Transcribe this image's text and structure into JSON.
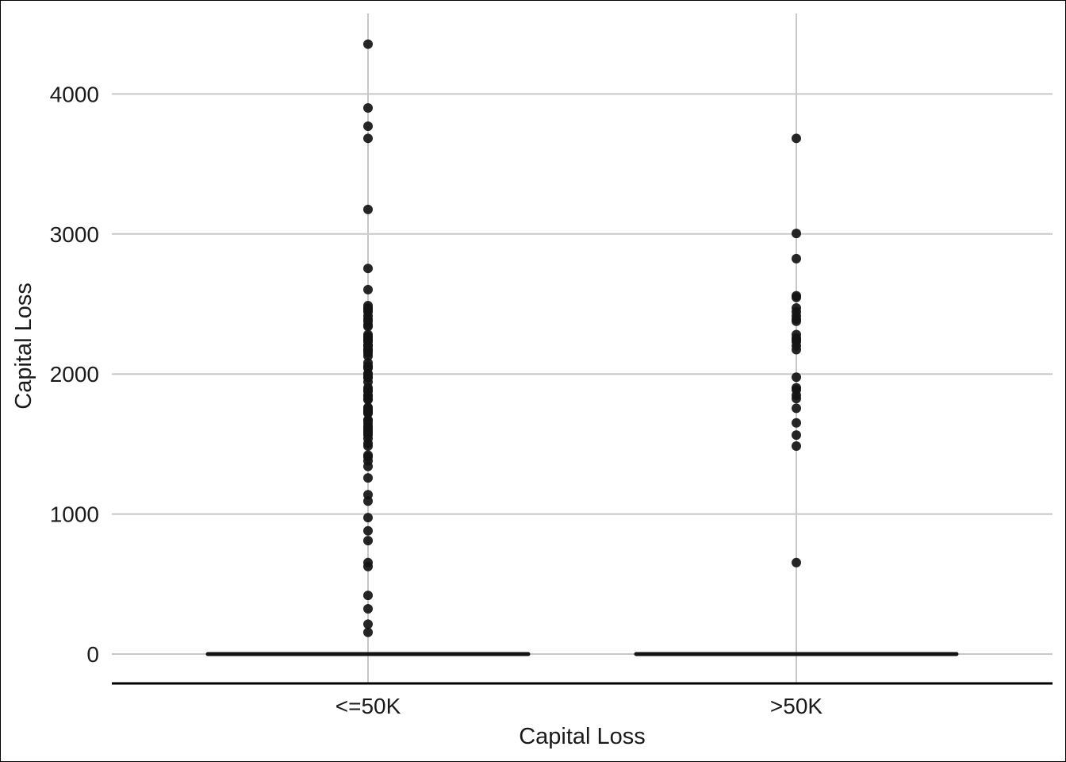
{
  "chart_data": {
    "type": "box",
    "title": "",
    "xlabel": "Capital Loss",
    "ylabel": "Capital Loss",
    "categories": [
      "<=50K",
      ">50K"
    ],
    "ylim": [
      -200,
      4400
    ],
    "yticks": [
      0,
      1000,
      2000,
      3000,
      4000
    ],
    "grid": true,
    "legend": "none",
    "colors": {
      "grid": "#c8c8c8",
      "point": "#141414",
      "box": "#141414",
      "axis": "#000000"
    },
    "boxes": [
      {
        "category": "<=50K",
        "min": 0,
        "q1": 0,
        "median": 0,
        "q3": 0,
        "max": 0
      },
      {
        "category": ">50K",
        "min": 0,
        "q1": 0,
        "median": 0,
        "q3": 0,
        "max": 0
      }
    ],
    "outliers": [
      {
        "category": "<=50K",
        "values": [
          155,
          213,
          323,
          419,
          625,
          653,
          810,
          880,
          974,
          1092,
          1138,
          1258,
          1340,
          1380,
          1408,
          1421,
          1485,
          1504,
          1539,
          1564,
          1579,
          1590,
          1602,
          1617,
          1628,
          1648,
          1669,
          1672,
          1719,
          1726,
          1735,
          1740,
          1741,
          1755,
          1762,
          1816,
          1825,
          1844,
          1848,
          1876,
          1887,
          1902,
          1944,
          1974,
          1977,
          1980,
          2001,
          2002,
          2042,
          2051,
          2057,
          2080,
          2129,
          2149,
          2163,
          2174,
          2179,
          2201,
          2205,
          2206,
          2231,
          2238,
          2246,
          2258,
          2267,
          2282,
          2339,
          2352,
          2377,
          2392,
          2415,
          2444,
          2457,
          2467,
          2472,
          2489,
          2603,
          2754,
          3175,
          3683,
          3770,
          3900,
          4356
        ]
      },
      {
        "category": ">50K",
        "values": [
          653,
          1485,
          1564,
          1651,
          1755,
          1825,
          1848,
          1887,
          1902,
          1977,
          2174,
          2201,
          2231,
          2246,
          2258,
          2282,
          2377,
          2392,
          2415,
          2444,
          2472,
          2547,
          2559,
          2824,
          3004,
          3683
        ]
      }
    ]
  }
}
